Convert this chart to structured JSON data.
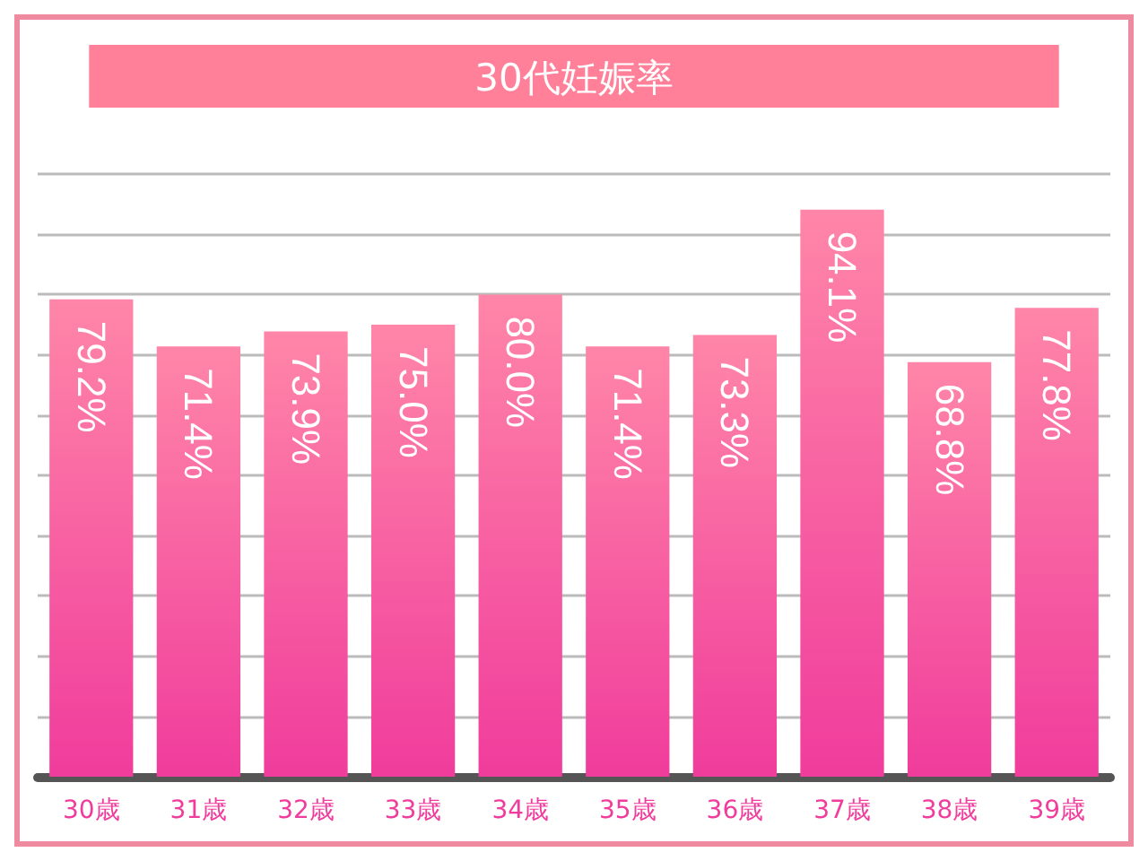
{
  "chart_data": {
    "type": "bar",
    "title": "30代妊娠率",
    "categories": [
      "30歳",
      "31歳",
      "32歳",
      "33歳",
      "34歳",
      "35歳",
      "36歳",
      "37歳",
      "38歳",
      "39歳"
    ],
    "values": [
      79.2,
      71.4,
      73.9,
      75.0,
      80.0,
      71.4,
      73.3,
      94.1,
      68.8,
      77.8
    ],
    "value_labels": [
      "79.2%",
      "71.4%",
      "73.9%",
      "75.0%",
      "80.0%",
      "71.4%",
      "73.3%",
      "94.1%",
      "68.8%",
      "77.8%"
    ],
    "color": "#f03c9c",
    "grid": "y",
    "tick_labels": "x"
  }
}
